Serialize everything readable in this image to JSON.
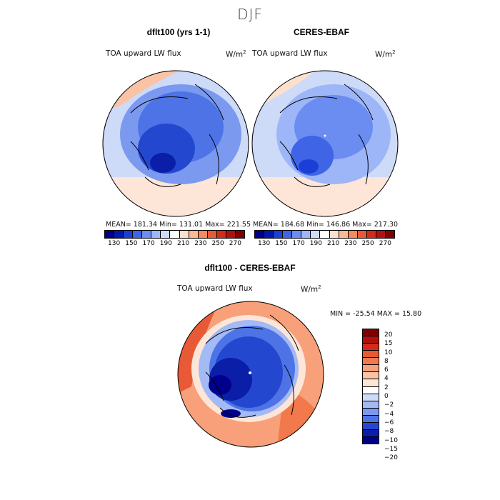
{
  "season": "DJF",
  "panels": [
    {
      "title": "dflt100 (yrs 1-1)",
      "variable": "TOA upward LW flux",
      "units": "W/m",
      "units_exp": "2",
      "stats": "MEAN= 181.34   Min= 131.01   Max= 221.55"
    },
    {
      "title": "CERES-EBAF",
      "variable": "TOA upward LW flux",
      "units": "W/m",
      "units_exp": "2",
      "stats": "MEAN= 184.68   Min= 146.86   Max= 217.30"
    }
  ],
  "top_colorbar": {
    "ticks": [
      "130",
      "150",
      "170",
      "190",
      "210",
      "230",
      "250",
      "270"
    ],
    "colors": [
      "#00008b",
      "#0018b0",
      "#1a3fd6",
      "#3f64e6",
      "#6b8cf0",
      "#9db6f8",
      "#cfdcfb",
      "#ffffff",
      "#fde0cc",
      "#fbb996",
      "#f58a5e",
      "#e85a35",
      "#d42a1a",
      "#b01010",
      "#800000"
    ]
  },
  "diff_panel": {
    "title": "dflt100 - CERES-EBAF",
    "variable": "TOA upward LW flux",
    "units": "W/m",
    "units_exp": "2",
    "stats": "MIN = -25.54  MAX =   15.80"
  },
  "diff_colorbar": {
    "ticks": [
      "20",
      "15",
      "10",
      "8",
      "6",
      "4",
      "2",
      "0",
      "−2",
      "−4",
      "−6",
      "−8",
      "−10",
      "−15",
      "−20"
    ],
    "colors": [
      "#800000",
      "#b01010",
      "#d42a1a",
      "#e85a35",
      "#f2794c",
      "#f7a07a",
      "#fbc3a6",
      "#fde6d8",
      "#ffffff",
      "#cddaf8",
      "#a3baf5",
      "#7a99ef",
      "#4e73e6",
      "#2447cf",
      "#0a1ea8",
      "#00008b"
    ]
  }
}
